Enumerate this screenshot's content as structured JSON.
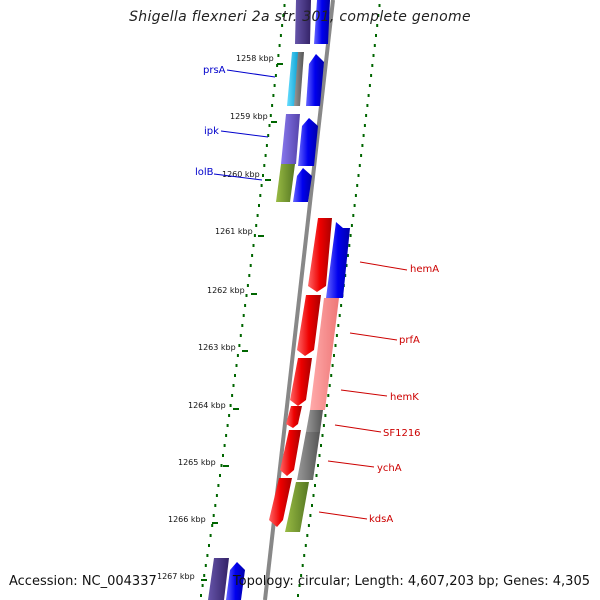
{
  "title": "Shigella flexneri 2a str. 301, complete genome",
  "footer": {
    "accession": "Accession: NC_004337",
    "summary": "Topology: circular; Length: 4,607,203 bp; Genes: 4,305"
  },
  "colors": {
    "label_left": "#0000cc",
    "label_right": "#cc0000",
    "tick": "#006600",
    "backbone": "#888888"
  },
  "ticks": [
    {
      "kbp": 1258,
      "label": "1258 kbp"
    },
    {
      "kbp": 1259,
      "label": "1259 kbp"
    },
    {
      "kbp": 1260,
      "label": "1260 kbp"
    },
    {
      "kbp": 1261,
      "label": "1261 kbp"
    },
    {
      "kbp": 1262,
      "label": "1262 kbp"
    },
    {
      "kbp": 1263,
      "label": "1263 kbp"
    },
    {
      "kbp": 1264,
      "label": "1264 kbp"
    },
    {
      "kbp": 1265,
      "label": "1265 kbp"
    },
    {
      "kbp": 1266,
      "label": "1266 kbp"
    },
    {
      "kbp": 1267,
      "label": "1267 kbp"
    }
  ],
  "genes_left": [
    {
      "name": "prsA"
    },
    {
      "name": "ipk"
    },
    {
      "name": "lolB"
    }
  ],
  "genes_right": [
    {
      "name": "hemA"
    },
    {
      "name": "prfA"
    },
    {
      "name": "hemK"
    },
    {
      "name": "SF1216"
    },
    {
      "name": "ychA"
    },
    {
      "name": "kdsA"
    }
  ]
}
